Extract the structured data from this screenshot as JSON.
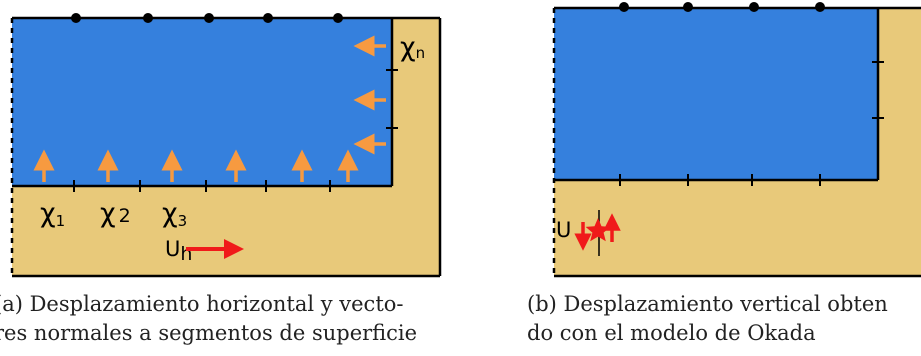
{
  "panel_a": {
    "chi_symbol": "χ",
    "chi_subscripts": [
      "1",
      "2",
      "3",
      "n"
    ],
    "u_label_base": "U",
    "u_label_sub": "h",
    "caption_line1": "(a) Desplazamiento horizontal y vecto-",
    "caption_line2": "res normales a segmentos de superficie"
  },
  "panel_b": {
    "u_label": "U",
    "caption_line1": "(b) Desplazamiento vertical obten",
    "caption_line2": "do con el modelo de Okada"
  },
  "colors": {
    "water": "#3580dd",
    "ground": "#e8c97a",
    "arrow_normal": "#f79a40",
    "displacement": "#f01a1a",
    "outline": "#000000"
  }
}
